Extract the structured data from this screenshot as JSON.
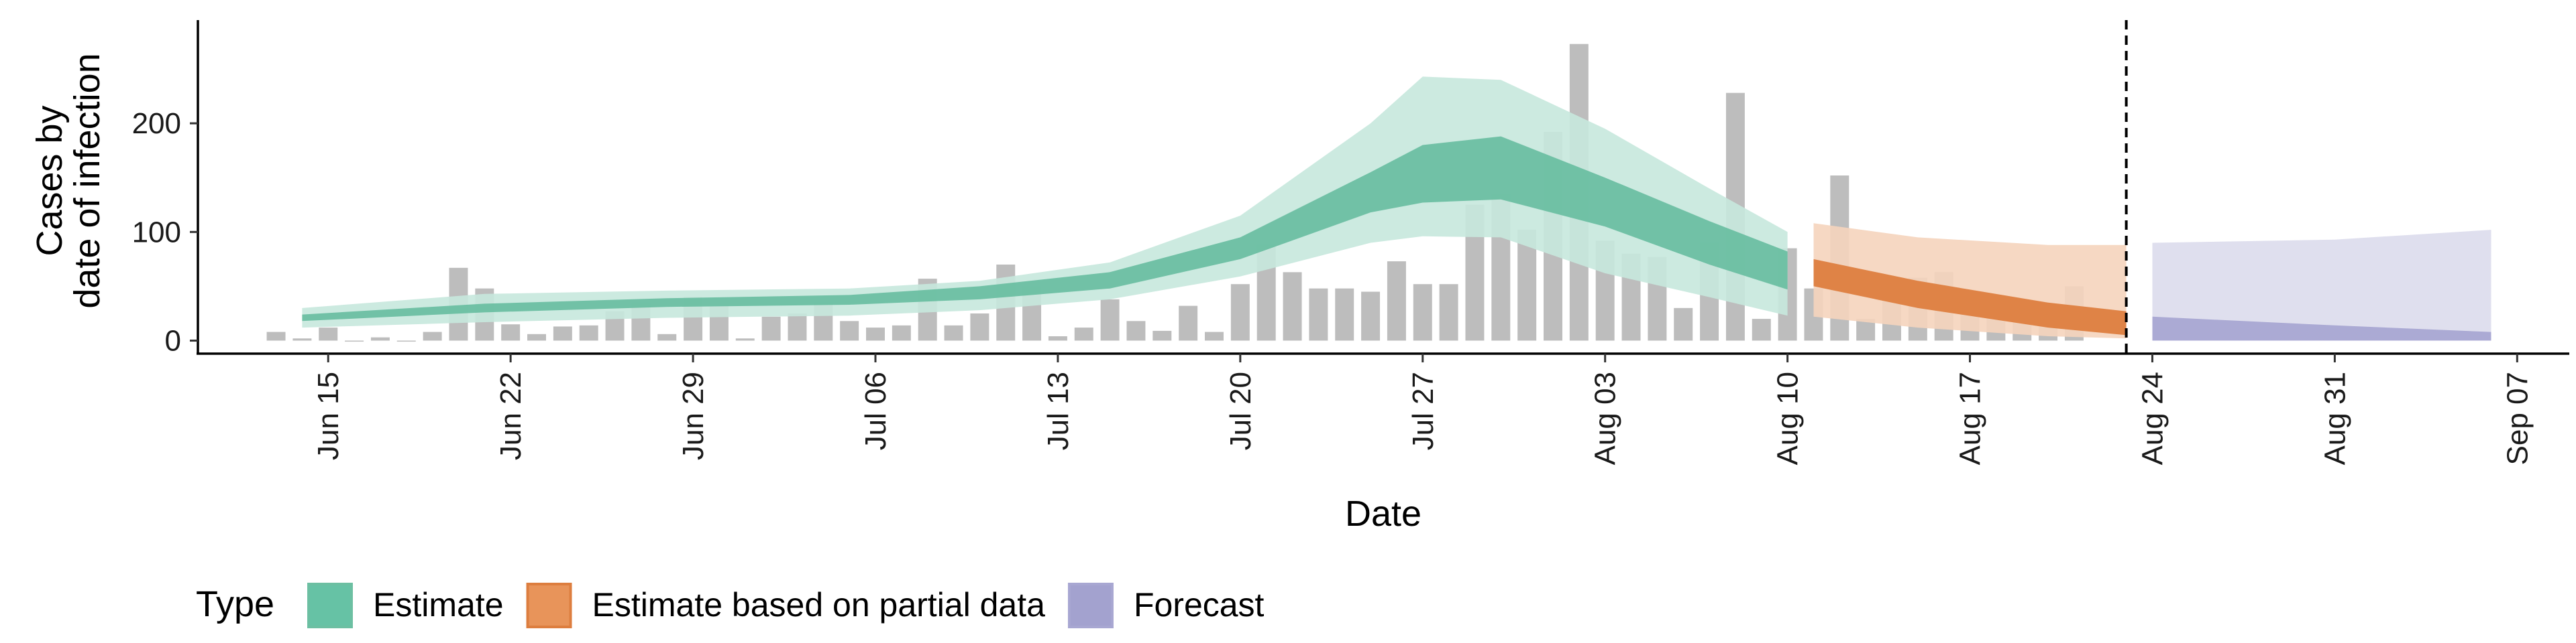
{
  "chart_data": {
    "type": "bar",
    "xlabel": "Date",
    "ylabel_lines": [
      "Cases by",
      "date of infection"
    ],
    "ylim": [
      -12,
      295
    ],
    "xlim": [
      "2020-06-10",
      "2020-09-09"
    ],
    "y_ticks": [
      0,
      100,
      200
    ],
    "x_ticks": [
      {
        "date": "2020-06-15",
        "label": "Jun 15"
      },
      {
        "date": "2020-06-22",
        "label": "Jun 22"
      },
      {
        "date": "2020-06-29",
        "label": "Jun 29"
      },
      {
        "date": "2020-07-06",
        "label": "Jul 06"
      },
      {
        "date": "2020-07-13",
        "label": "Jul 13"
      },
      {
        "date": "2020-07-20",
        "label": "Jul 20"
      },
      {
        "date": "2020-07-27",
        "label": "Jul 27"
      },
      {
        "date": "2020-08-03",
        "label": "Aug 03"
      },
      {
        "date": "2020-08-10",
        "label": "Aug 10"
      },
      {
        "date": "2020-08-17",
        "label": "Aug 17"
      },
      {
        "date": "2020-08-24",
        "label": "Aug 24"
      },
      {
        "date": "2020-08-31",
        "label": "Aug 31"
      },
      {
        "date": "2020-09-07",
        "label": "Sep 07"
      }
    ],
    "grid": false,
    "reference_line_date": "2020-08-23",
    "observed_cases": {
      "start_date": "2020-06-13",
      "values": [
        8,
        2,
        12,
        0,
        3,
        0,
        8,
        67,
        48,
        15,
        6,
        13,
        14,
        27,
        35,
        6,
        40,
        32,
        2,
        22,
        25,
        35,
        18,
        12,
        14,
        57,
        14,
        25,
        70,
        50,
        4,
        12,
        38,
        18,
        9,
        32,
        8,
        52,
        88,
        63,
        48,
        48,
        45,
        73,
        52,
        52,
        125,
        135,
        102,
        192,
        273,
        92,
        80,
        77,
        30,
        90,
        228,
        20,
        85,
        48,
        152,
        20,
        52,
        58,
        63,
        35,
        22,
        35,
        15,
        50
      ]
    },
    "series": [
      {
        "name": "Estimate",
        "color_fill": "#66c2a5",
        "color_outer": "#c6e8dd",
        "color_inner": "#6cbfa2",
        "dates": [
          "2020-06-14",
          "2020-06-21",
          "2020-06-28",
          "2020-07-05",
          "2020-07-10",
          "2020-07-15",
          "2020-07-20",
          "2020-07-25",
          "2020-07-27",
          "2020-07-30",
          "2020-08-03",
          "2020-08-07",
          "2020-08-10"
        ],
        "outer_upper": [
          30,
          43,
          46,
          48,
          55,
          72,
          115,
          200,
          243,
          240,
          195,
          140,
          100
        ],
        "inner_upper": [
          24,
          34,
          39,
          42,
          50,
          63,
          95,
          155,
          180,
          188,
          150,
          110,
          82
        ],
        "inner_lower": [
          18,
          26,
          31,
          33,
          38,
          48,
          75,
          118,
          127,
          130,
          105,
          70,
          47
        ],
        "outer_lower": [
          12,
          17,
          21,
          23,
          28,
          38,
          59,
          90,
          96,
          95,
          62,
          40,
          23
        ]
      },
      {
        "name": "Estimate based on partial data",
        "color_fill": "#e8945a",
        "color_outer": "#f5d4bd",
        "color_inner": "#dd7e3f",
        "dates": [
          "2020-08-11",
          "2020-08-15",
          "2020-08-20",
          "2020-08-23"
        ],
        "outer_upper": [
          108,
          95,
          88,
          88
        ],
        "inner_upper": [
          75,
          55,
          35,
          27
        ],
        "inner_lower": [
          50,
          30,
          12,
          5
        ],
        "outer_lower": [
          22,
          12,
          4,
          2
        ]
      },
      {
        "name": "Forecast",
        "color_fill": "#a3a2cf",
        "color_outer": "#dcdcec",
        "color_inner": "#a8a7d2",
        "dates": [
          "2020-08-24",
          "2020-08-31",
          "2020-09-06"
        ],
        "outer_upper": [
          90,
          93,
          102
        ],
        "inner_upper": [
          22,
          14,
          8
        ],
        "inner_lower": [
          0,
          0,
          0
        ],
        "outer_lower": [
          0,
          0,
          0
        ]
      }
    ],
    "legend": {
      "title": "Type",
      "position": "bottom-left",
      "entries": [
        "Estimate",
        "Estimate based on partial data",
        "Forecast"
      ]
    }
  }
}
